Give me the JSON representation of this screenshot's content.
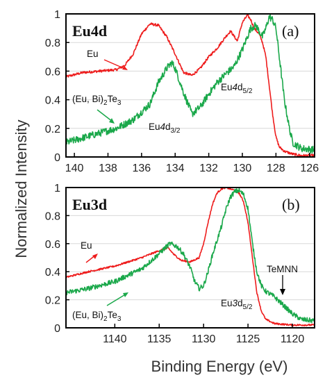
{
  "figure": {
    "ylabel": "Normalized Intensity",
    "xlabel": "Binding Energy (eV)"
  },
  "chart_data": [
    {
      "type": "line",
      "panel_label": "(a)",
      "panel_title": "Eu4d",
      "xlim": [
        140.5,
        125.7
      ],
      "ylim": [
        0,
        1
      ],
      "x_ticks": [
        140,
        138,
        136,
        134,
        132,
        130,
        128,
        126
      ],
      "y_ticks": [
        0,
        0.2,
        0.4,
        0.6,
        0.8,
        1
      ],
      "series": [
        {
          "name": "Eu",
          "color": "#ee1c1c",
          "x": [
            140.5,
            139.5,
            138.5,
            137.5,
            137.0,
            136.5,
            136.0,
            135.5,
            135.0,
            134.5,
            134.0,
            133.5,
            133.0,
            132.5,
            132.0,
            131.5,
            131.0,
            130.7,
            130.3,
            130.0,
            129.7,
            129.5,
            129.3,
            129.0,
            128.8,
            128.6,
            128.4,
            128.2,
            128.0,
            127.8,
            127.5,
            127.0,
            126.5,
            125.7
          ],
          "y": [
            0.56,
            0.59,
            0.6,
            0.61,
            0.64,
            0.72,
            0.86,
            0.93,
            0.92,
            0.84,
            0.72,
            0.59,
            0.57,
            0.62,
            0.7,
            0.76,
            0.84,
            0.88,
            0.81,
            0.94,
            0.99,
            0.96,
            0.9,
            0.86,
            0.8,
            0.7,
            0.5,
            0.3,
            0.14,
            0.07,
            0.04,
            0.02,
            0.01,
            0.01
          ]
        },
        {
          "name": "(Eu, Bi)2Te3",
          "color": "#1aa84a",
          "x": [
            140.5,
            139.0,
            137.5,
            136.5,
            135.5,
            135.0,
            134.5,
            134.2,
            134.0,
            133.5,
            133.0,
            132.5,
            132.0,
            131.5,
            131.0,
            130.5,
            130.0,
            129.7,
            129.5,
            129.2,
            129.0,
            128.8,
            128.6,
            128.4,
            128.2,
            128.0,
            127.8,
            127.5,
            127.2,
            127.0,
            126.5,
            125.7
          ],
          "y": [
            0.1,
            0.15,
            0.2,
            0.26,
            0.37,
            0.52,
            0.62,
            0.66,
            0.62,
            0.45,
            0.3,
            0.35,
            0.44,
            0.52,
            0.58,
            0.63,
            0.75,
            0.84,
            0.9,
            0.92,
            0.88,
            0.84,
            0.9,
            0.98,
            0.96,
            0.9,
            0.7,
            0.4,
            0.2,
            0.1,
            0.06,
            0.05
          ]
        }
      ],
      "annotations": {
        "eu": "Eu",
        "eubite_pre": "(Eu, Bi)",
        "eubite_sub1": "2",
        "eubite_mid": "Te",
        "eubite_sub2": "3",
        "peak1_pre": "Eu",
        "peak1_italic": "4",
        "peak1_mid": "d",
        "peak1_sub": "5/2",
        "peak2_pre": "Eu",
        "peak2_italic": "4",
        "peak2_mid": "d",
        "peak2_sub": "3/2"
      }
    },
    {
      "type": "line",
      "panel_label": "(b)",
      "panel_title": "Eu3d",
      "xlim": [
        1145.5,
        1117.5
      ],
      "ylim": [
        0,
        1
      ],
      "x_ticks": [
        1140,
        1135,
        1130,
        1125,
        1120
      ],
      "y_ticks": [
        0,
        0.2,
        0.4,
        0.6,
        0.8,
        1
      ],
      "series": [
        {
          "name": "Eu",
          "color": "#ee1c1c",
          "x": [
            1145.5,
            1143.0,
            1140.0,
            1137.0,
            1135.0,
            1134.0,
            1133.3,
            1132.5,
            1131.5,
            1130.5,
            1130.0,
            1129.5,
            1129.0,
            1128.5,
            1128.0,
            1127.5,
            1127.0,
            1126.5,
            1126.0,
            1125.5,
            1125.0,
            1124.5,
            1124.0,
            1123.5,
            1123.0,
            1122.0,
            1120.0,
            1117.5
          ],
          "y": [
            0.36,
            0.4,
            0.44,
            0.5,
            0.55,
            0.57,
            0.52,
            0.48,
            0.47,
            0.5,
            0.6,
            0.75,
            0.88,
            0.96,
            0.99,
            1.0,
            0.99,
            0.98,
            0.96,
            0.9,
            0.75,
            0.5,
            0.25,
            0.12,
            0.06,
            0.03,
            0.02,
            0.02
          ]
        },
        {
          "name": "(Eu, Bi)2Te3",
          "color": "#1aa84a",
          "x": [
            1145.5,
            1143.0,
            1140.0,
            1137.0,
            1135.5,
            1134.5,
            1133.8,
            1133.0,
            1132.3,
            1131.5,
            1131.0,
            1130.5,
            1130.0,
            1129.5,
            1129.0,
            1128.0,
            1127.5,
            1127.0,
            1126.5,
            1126.0,
            1125.5,
            1125.0,
            1124.5,
            1124.0,
            1123.5,
            1123.0,
            1122.0,
            1121.0,
            1120.0,
            1119.0,
            1117.5
          ],
          "y": [
            0.25,
            0.28,
            0.33,
            0.42,
            0.5,
            0.56,
            0.6,
            0.58,
            0.53,
            0.43,
            0.33,
            0.28,
            0.3,
            0.4,
            0.52,
            0.72,
            0.84,
            0.93,
            0.97,
            0.98,
            0.95,
            0.85,
            0.6,
            0.4,
            0.3,
            0.26,
            0.22,
            0.16,
            0.1,
            0.06,
            0.05
          ]
        }
      ],
      "annotations": {
        "eu": "Eu",
        "eubite_pre": "(Eu, Bi)",
        "eubite_sub1": "2",
        "eubite_mid": "Te",
        "eubite_sub2": "3",
        "peak1_pre": "Eu",
        "peak1_italic": "3",
        "peak1_mid": "d",
        "peak1_sub": "5/2",
        "temnn": "TeMNN"
      }
    }
  ]
}
